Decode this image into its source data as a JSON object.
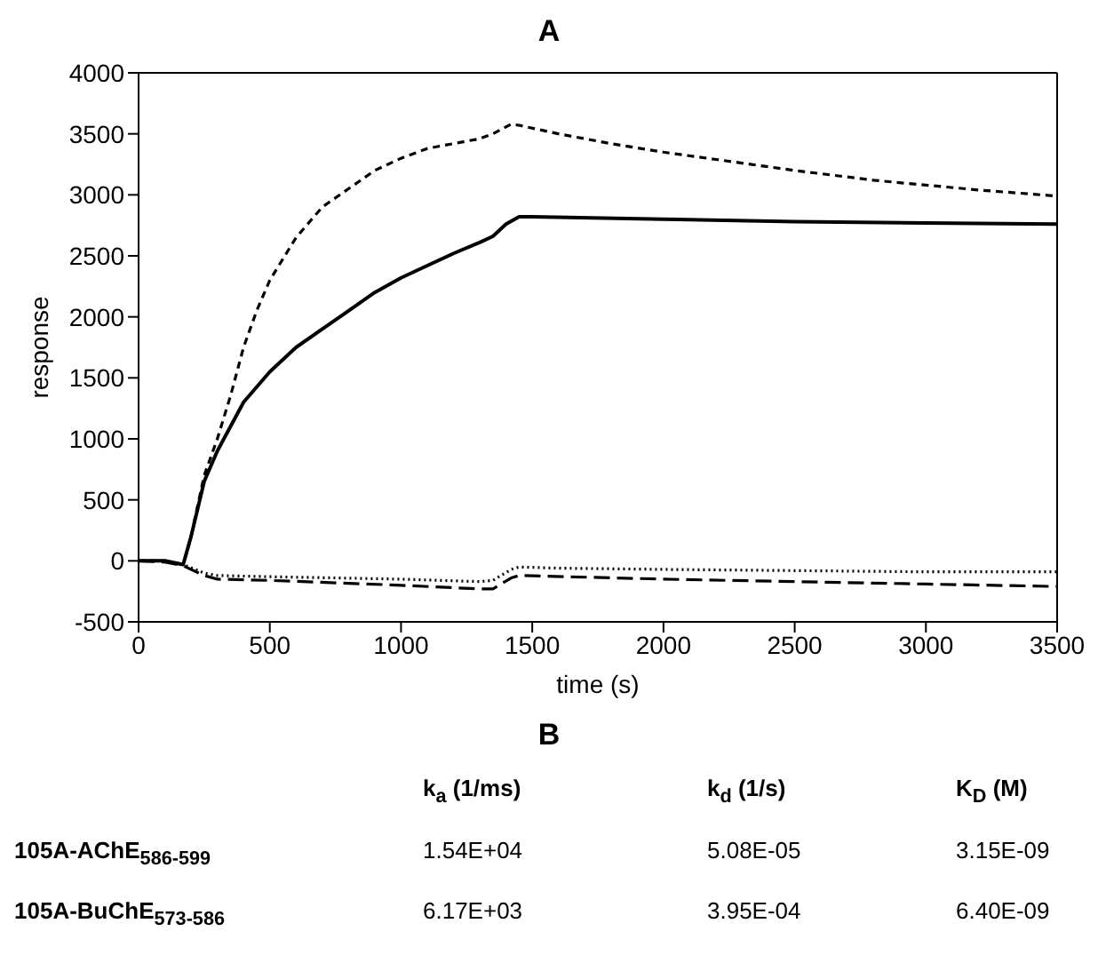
{
  "chart_data": [
    {
      "type": "line",
      "title": "A",
      "xlabel": "time (s)",
      "ylabel": "response",
      "xlim": [
        0,
        3500
      ],
      "xticks": [
        0,
        500,
        1000,
        1500,
        2000,
        2500,
        3000,
        3500
      ],
      "ylim": [
        -500,
        4000
      ],
      "yticks": [
        -500,
        0,
        500,
        1000,
        1500,
        2000,
        2500,
        3000,
        3500,
        4000
      ],
      "legend": false,
      "marker": "none",
      "series": [
        {
          "color": "#000000",
          "line_style": "dashed",
          "x": [
            0,
            100,
            170,
            200,
            250,
            300,
            350,
            400,
            450,
            500,
            600,
            700,
            800,
            900,
            1000,
            1100,
            1200,
            1300,
            1350,
            1420,
            1450,
            1600,
            1800,
            2000,
            2200,
            2500,
            2800,
            3000,
            3200,
            3500
          ],
          "values": [
            0,
            0,
            -30,
            200,
            700,
            1000,
            1350,
            1750,
            2050,
            2300,
            2650,
            2900,
            3050,
            3200,
            3300,
            3380,
            3420,
            3460,
            3500,
            3580,
            3570,
            3500,
            3420,
            3350,
            3290,
            3200,
            3120,
            3080,
            3040,
            2990
          ]
        },
        {
          "color": "#000000",
          "line_style": "solid",
          "x": [
            0,
            100,
            170,
            200,
            250,
            300,
            350,
            400,
            500,
            600,
            700,
            800,
            900,
            1000,
            1100,
            1200,
            1300,
            1350,
            1400,
            1450,
            1500,
            2000,
            2500,
            3000,
            3500
          ],
          "values": [
            0,
            0,
            -30,
            200,
            650,
            900,
            1100,
            1300,
            1550,
            1750,
            1900,
            2050,
            2200,
            2320,
            2420,
            2520,
            2610,
            2660,
            2760,
            2820,
            2820,
            2800,
            2780,
            2770,
            2760
          ]
        },
        {
          "color": "#000000",
          "line_style": "dotted",
          "x": [
            0,
            100,
            170,
            250,
            300,
            500,
            1000,
            1300,
            1350,
            1420,
            1450,
            1600,
            2000,
            2500,
            3000,
            3500
          ],
          "values": [
            0,
            0,
            -30,
            -100,
            -120,
            -130,
            -150,
            -170,
            -160,
            -70,
            -50,
            -60,
            -70,
            -80,
            -90,
            -90
          ]
        },
        {
          "color": "#000000",
          "line_style": "longdash",
          "x": [
            0,
            100,
            170,
            250,
            300,
            500,
            1000,
            1300,
            1350,
            1420,
            1450,
            2000,
            2500,
            3000,
            3500
          ],
          "values": [
            0,
            -10,
            -40,
            -120,
            -150,
            -160,
            -200,
            -230,
            -230,
            -140,
            -120,
            -150,
            -170,
            -190,
            -210
          ]
        }
      ]
    },
    {
      "type": "other",
      "title": "B",
      "annotations": [
        "k$_{a}$ (1/ms)",
        "k$_{d}$ (1/s)",
        "K$_{D}$ (M)",
        "105A-AChE$_{586-599}$",
        "1.54E+04",
        "5.08E-05",
        "3.15E-09",
        "105A-BuChE$_{573-586}$",
        "6.17E+03",
        "3.95E-04",
        "6.40E-09"
      ]
    }
  ]
}
